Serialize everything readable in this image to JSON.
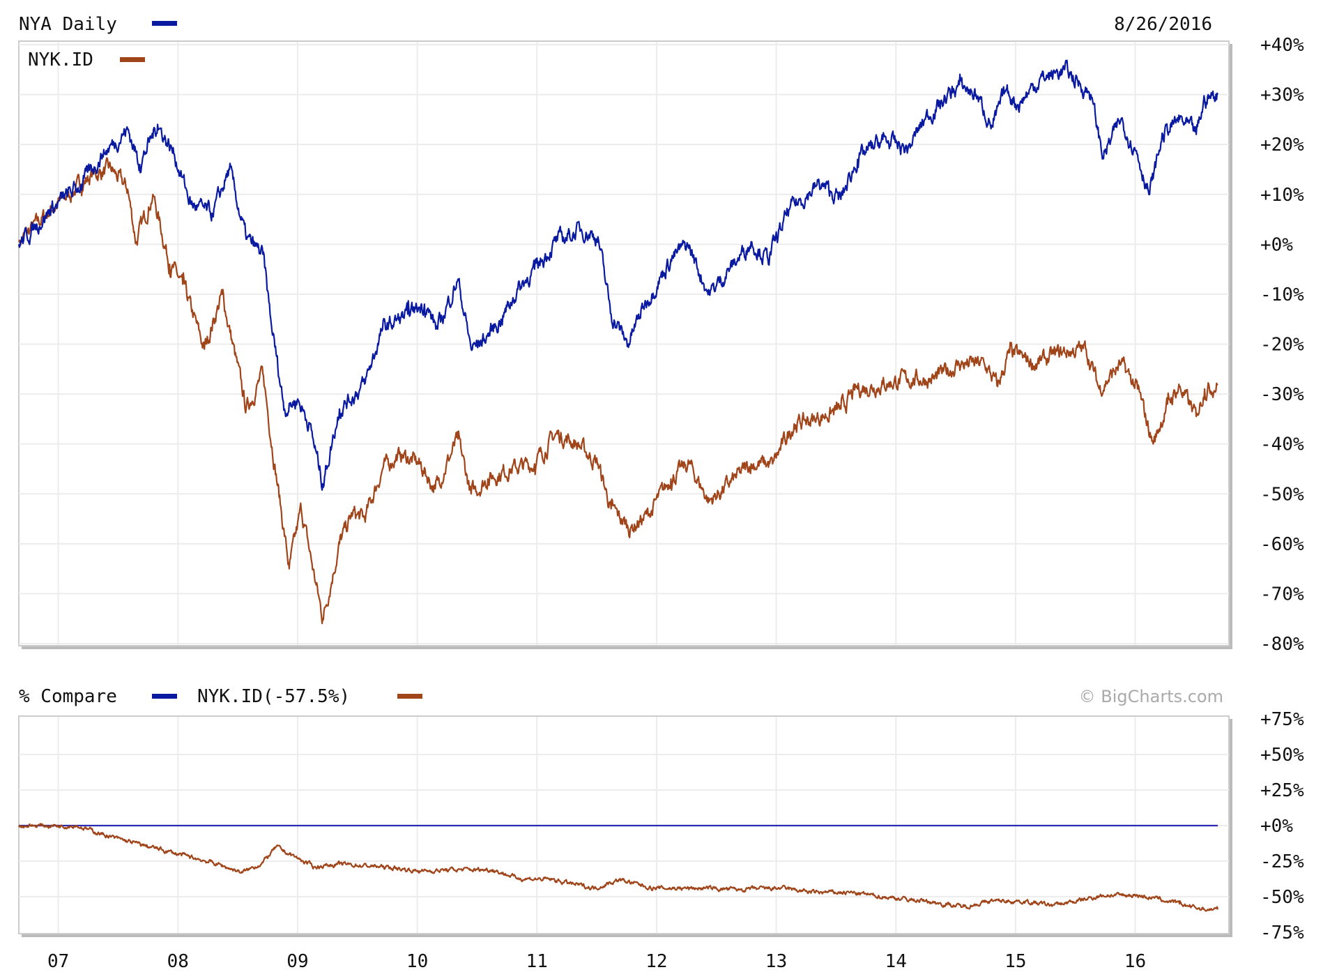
{
  "chart_data": [
    {
      "type": "line",
      "title": "NYA Daily",
      "date": "8/26/2016",
      "ylim": [
        -80,
        40
      ],
      "yticks": [
        "+40%",
        "+30%",
        "+20%",
        "+10%",
        "+0%",
        "-10%",
        "-20%",
        "-30%",
        "-40%",
        "-50%",
        "-60%",
        "-70%",
        "-80%"
      ],
      "ytick_values": [
        40,
        30,
        20,
        10,
        0,
        -10,
        -20,
        -30,
        -40,
        -50,
        -60,
        -70,
        -80
      ],
      "xlim": [
        2006.67,
        2016.69
      ],
      "grid": true,
      "series": [
        {
          "name": "NYA Daily",
          "color": "#0a1aa0",
          "x": [
            2006.67,
            2006.94,
            2007.19,
            2007.37,
            2007.58,
            2007.68,
            2007.83,
            2007.97,
            2008.11,
            2008.29,
            2008.43,
            2008.57,
            2008.71,
            2008.78,
            2008.89,
            2009.0,
            2009.1,
            2009.21,
            2009.35,
            2009.56,
            2009.71,
            2009.92,
            2010.06,
            2010.17,
            2010.34,
            2010.45,
            2010.56,
            2010.7,
            2010.84,
            2010.98,
            2011.16,
            2011.37,
            2011.51,
            2011.62,
            2011.76,
            2011.9,
            2012.12,
            2012.26,
            2012.44,
            2012.61,
            2012.79,
            2012.93,
            2013.11,
            2013.36,
            2013.54,
            2013.68,
            2013.89,
            2014.1,
            2014.24,
            2014.53,
            2014.67,
            2014.81,
            2014.92,
            2015.02,
            2015.2,
            2015.41,
            2015.63,
            2015.73,
            2015.88,
            2016.02,
            2016.12,
            2016.23,
            2016.37,
            2016.51,
            2016.58,
            2016.69
          ],
          "y": [
            0,
            7,
            12,
            18,
            23,
            16,
            24,
            18,
            8,
            6,
            15,
            1,
            -2,
            -16,
            -33,
            -31,
            -36,
            -48,
            -33,
            -28,
            -17,
            -14,
            -12,
            -17,
            -7,
            -21,
            -19,
            -15,
            -9,
            -5,
            0.5,
            3,
            1.5,
            -14,
            -20,
            -12,
            -3,
            0,
            -10,
            -5,
            0.5,
            -3,
            7,
            12,
            9,
            17,
            21,
            19,
            25,
            32,
            30,
            23.5,
            31,
            28,
            33,
            35,
            30,
            17.5,
            25,
            18,
            10,
            22,
            25,
            22,
            29,
            30
          ]
        },
        {
          "name": "NYK.ID",
          "color": "#a0441a",
          "x": [
            2006.67,
            2006.94,
            2007.19,
            2007.29,
            2007.44,
            2007.58,
            2007.65,
            2007.79,
            2007.93,
            2008.04,
            2008.22,
            2008.37,
            2008.57,
            2008.71,
            2008.82,
            2008.93,
            2009.03,
            2009.21,
            2009.35,
            2009.46,
            2009.56,
            2009.71,
            2009.85,
            2010.02,
            2010.15,
            2010.34,
            2010.45,
            2010.59,
            2010.77,
            2010.98,
            2011.16,
            2011.34,
            2011.51,
            2011.62,
            2011.78,
            2011.94,
            2012.12,
            2012.27,
            2012.44,
            2012.61,
            2012.79,
            2012.97,
            2013.15,
            2013.32,
            2013.54,
            2013.68,
            2013.89,
            2014.1,
            2014.32,
            2014.53,
            2014.74,
            2014.85,
            2014.95,
            2015.17,
            2015.38,
            2015.59,
            2015.7,
            2015.88,
            2016.02,
            2016.15,
            2016.27,
            2016.37,
            2016.51,
            2016.58,
            2016.69
          ],
          "y": [
            0.5,
            7,
            12,
            14,
            15,
            11,
            0.5,
            10,
            -4,
            -8,
            -21,
            -10,
            -33,
            -26,
            -46,
            -65,
            -53,
            -75,
            -60,
            -54,
            -55,
            -45,
            -42,
            -44,
            -49,
            -39,
            -50,
            -47,
            -45,
            -44,
            -38,
            -40,
            -44,
            -53,
            -57,
            -54,
            -47,
            -44,
            -51.5,
            -48,
            -44,
            -44,
            -36,
            -35,
            -33,
            -29,
            -28,
            -27,
            -27,
            -24,
            -24,
            -28.5,
            -21.7,
            -24,
            -21.7,
            -21,
            -29,
            -24,
            -29,
            -40,
            -32,
            -28.5,
            -34.5,
            -29,
            -28
          ]
        }
      ]
    },
    {
      "type": "line",
      "title": "% Compare",
      "legend_label": "NYK.ID(-57.5%)",
      "watermark": "© BigCharts.com",
      "ylim": [
        -75,
        75
      ],
      "yticks": [
        "+75%",
        "+50%",
        "+25%",
        "+0%",
        "-25%",
        "-50%",
        "-75%"
      ],
      "ytick_values": [
        75,
        50,
        25,
        0,
        -25,
        -50,
        -75
      ],
      "xticks": [
        "07",
        "08",
        "09",
        "10",
        "11",
        "12",
        "13",
        "14",
        "15",
        "16"
      ],
      "xtick_values": [
        2007,
        2008,
        2009,
        2010,
        2011,
        2012,
        2013,
        2014,
        2015,
        2016
      ],
      "xlim": [
        2006.67,
        2016.69
      ],
      "grid": true,
      "series": [
        {
          "name": "NYA",
          "color": "#2a2ab0",
          "x": [
            2006.67,
            2016.69
          ],
          "y": [
            0,
            0
          ]
        },
        {
          "name": "NYK.ID",
          "color": "#a0441a",
          "x": [
            2006.67,
            2007.15,
            2007.44,
            2007.72,
            2008.0,
            2008.29,
            2008.54,
            2008.71,
            2008.82,
            2009.0,
            2009.14,
            2009.35,
            2009.71,
            2010.02,
            2010.34,
            2010.63,
            2010.84,
            2011.12,
            2011.48,
            2011.69,
            2011.97,
            2012.4,
            2012.68,
            2013.04,
            2013.32,
            2013.61,
            2013.89,
            2014.24,
            2014.56,
            2014.81,
            2015.02,
            2015.31,
            2015.52,
            2015.73,
            2016.02,
            2016.16,
            2016.37,
            2016.58,
            2016.69
          ],
          "y": [
            0,
            0,
            -8,
            -14,
            -20,
            -26,
            -33,
            -26,
            -15,
            -23,
            -29,
            -27,
            -29,
            -32,
            -31,
            -31,
            -37,
            -38,
            -44,
            -38,
            -44,
            -44,
            -45,
            -44,
            -47,
            -47,
            -50,
            -53,
            -57,
            -53,
            -53,
            -56,
            -53,
            -49,
            -49,
            -51,
            -55,
            -59,
            -59
          ]
        }
      ]
    }
  ]
}
